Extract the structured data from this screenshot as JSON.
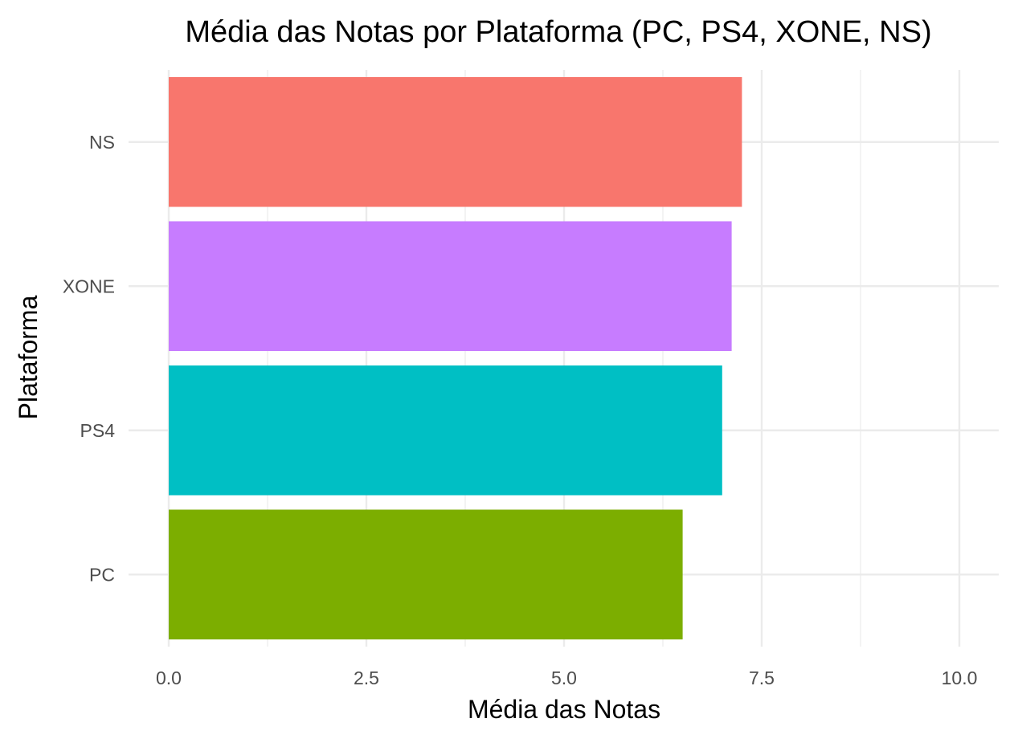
{
  "chart_data": {
    "type": "bar",
    "orientation": "horizontal",
    "title": "Média das Notas por Plataforma (PC, PS4, XONE, NS)",
    "xlabel": "Média das Notas",
    "ylabel": "Plataforma",
    "categories": [
      "PC",
      "PS4",
      "XONE",
      "NS"
    ],
    "values": [
      6.5,
      7.0,
      7.12,
      7.25
    ],
    "colors": [
      "#7CAE00",
      "#00BFC4",
      "#C77CFF",
      "#F8766D"
    ],
    "xlim": [
      0,
      10.5
    ],
    "xticks": [
      0,
      2.5,
      5,
      7.5,
      10
    ],
    "xtick_labels": [
      "0.0",
      "2.5",
      "5.0",
      "7.5",
      "10.0"
    ],
    "grid": true,
    "legend": "none",
    "theme": "minimal"
  }
}
